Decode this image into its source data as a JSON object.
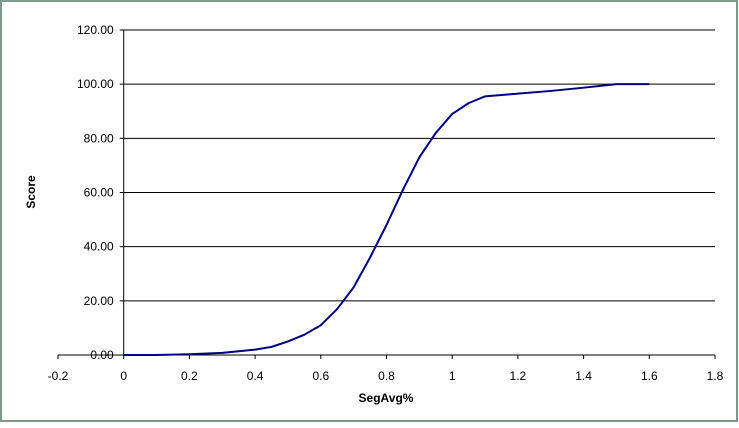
{
  "chart_data": {
    "type": "line",
    "x_label": "SegAvg%",
    "y_label": "Score",
    "xlim": [
      -0.2,
      1.8
    ],
    "xticks": [
      -0.2,
      0,
      0.2,
      0.4,
      0.6,
      0.8,
      1,
      1.2,
      1.4,
      1.6,
      1.8
    ],
    "ylim": [
      0,
      120
    ],
    "yticks": [
      {
        "value": 0,
        "label": "0.00"
      },
      {
        "value": 20,
        "label": "20.00"
      },
      {
        "value": 40,
        "label": "40.00"
      },
      {
        "value": 60,
        "label": "60.00"
      },
      {
        "value": 80,
        "label": "80.00"
      },
      {
        "value": 100,
        "label": "100.00"
      },
      {
        "value": 120,
        "label": "120.00"
      }
    ],
    "grid": true,
    "series": [
      {
        "color": "#000080",
        "x": [
          0,
          0.1,
          0.2,
          0.3,
          0.4,
          0.45,
          0.5,
          0.55,
          0.6,
          0.65,
          0.7,
          0.75,
          0.8,
          0.85,
          0.9,
          0.95,
          1.0,
          1.05,
          1.1,
          1.2,
          1.3,
          1.4,
          1.5,
          1.6
        ],
        "values": [
          0,
          0,
          0.3,
          0.8,
          2,
          3,
          5,
          7.5,
          11,
          17,
          25,
          36,
          48,
          61,
          73,
          82,
          89,
          93,
          95.5,
          96.5,
          97.5,
          98.7,
          100,
          100
        ]
      }
    ]
  }
}
